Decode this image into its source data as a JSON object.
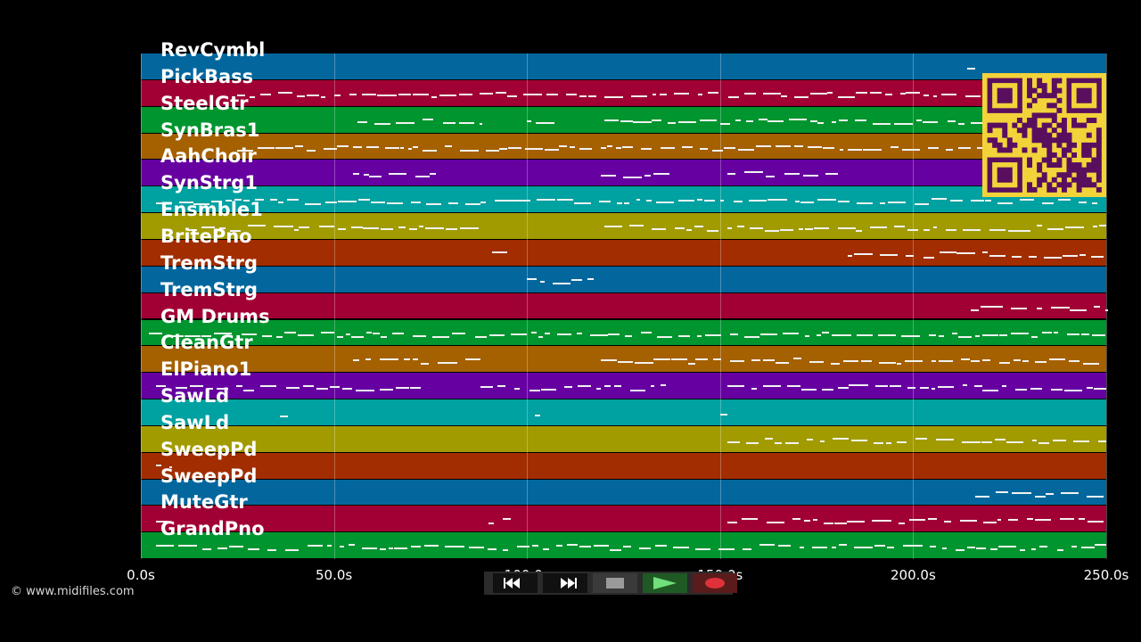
{
  "credit": "© www.midifiles.com",
  "tracks": [
    {
      "name": "RevCymbl",
      "color": "#03679e"
    },
    {
      "name": "PickBass",
      "color": "#a10034"
    },
    {
      "name": "SteelGtr",
      "color": "#00952e"
    },
    {
      "name": "SynBras1",
      "color": "#a56000"
    },
    {
      "name": "AahChoir",
      "color": "#6600a1"
    },
    {
      "name": "SynStrg1",
      "color": "#00a1a1"
    },
    {
      "name": "Ensmble1",
      "color": "#a19b00"
    },
    {
      "name": "BritePno",
      "color": "#a12d00"
    },
    {
      "name": "TremStrg",
      "color": "#03679e"
    },
    {
      "name": "TremStrg",
      "color": "#a10034"
    },
    {
      "name": "GM Drums",
      "color": "#00952e"
    },
    {
      "name": "CleanGtr",
      "color": "#a56000"
    },
    {
      "name": "ElPiano1",
      "color": "#6600a1"
    },
    {
      "name": "SawLd",
      "color": "#00a1a1"
    },
    {
      "name": "SawLd",
      "color": "#a19b00"
    },
    {
      "name": "SweepPd",
      "color": "#a12d00"
    },
    {
      "name": "SweepPd",
      "color": "#03679e"
    },
    {
      "name": "MuteGtr",
      "color": "#a10034"
    },
    {
      "name": "GrandPno",
      "color": "#00952e"
    }
  ],
  "axis": {
    "ticks": [
      "0.0s",
      "50.0s",
      "100.0s",
      "150.0s",
      "200.0s",
      "250.0s"
    ],
    "tick_values": [
      0,
      50,
      100,
      150,
      200,
      250
    ],
    "max_seconds": 250
  },
  "transport": {
    "buttons": [
      {
        "name": "rewind-button",
        "icon": "rewind-icon"
      },
      {
        "name": "fast-forward-button",
        "icon": "fast-forward-icon"
      },
      {
        "name": "stop-button",
        "icon": "stop-icon"
      },
      {
        "name": "play-button",
        "icon": "play-icon"
      },
      {
        "name": "record-button",
        "icon": "record-icon"
      }
    ]
  },
  "qr_code": {
    "icon": "qr-code-icon",
    "fg": "#5a0f5e",
    "bg": "#f2d33a"
  }
}
